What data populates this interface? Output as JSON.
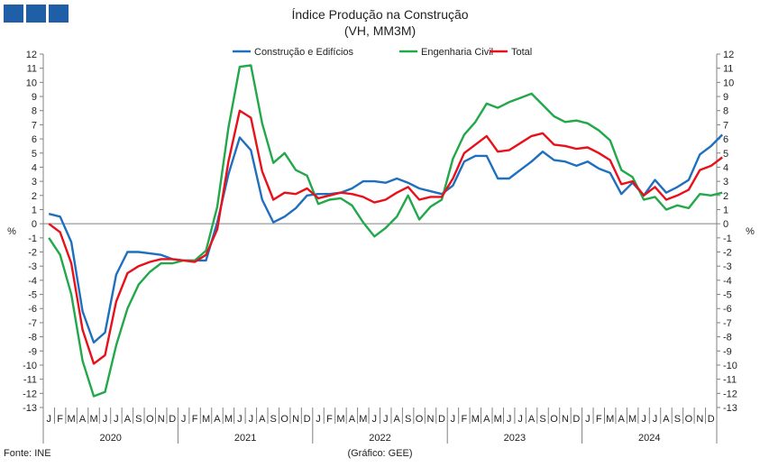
{
  "header": {
    "title": "Índice Produção na Construção",
    "subtitle": "(VH, MM3M)"
  },
  "footer": {
    "source": "Fonte: INE",
    "credit": "(Gráfico: GEE)"
  },
  "logo": {
    "icon": "logo-blocks-icon",
    "color": "#1f5fa8"
  },
  "chart_data": {
    "type": "line",
    "title": "Índice Produção na Construção",
    "subtitle": "(VH, MM3M)",
    "ylabel_left": "%",
    "ylabel_right": "%",
    "ylim": [
      -13,
      12
    ],
    "yticks": [
      -13,
      -12,
      -11,
      -10,
      -9,
      -8,
      -7,
      -6,
      -5,
      -4,
      -3,
      -2,
      -1,
      0,
      1,
      2,
      3,
      4,
      5,
      6,
      7,
      8,
      9,
      10,
      11,
      12
    ],
    "grid": false,
    "legend_position": "top-center",
    "months": [
      "J",
      "F",
      "M",
      "A",
      "M",
      "J",
      "J",
      "A",
      "S",
      "O",
      "N",
      "D"
    ],
    "years": [
      "2020",
      "2021",
      "2022",
      "2023",
      "2024"
    ],
    "series": [
      {
        "name": "Construção e Edifícios",
        "color": "#1f6fbf",
        "values": [
          0.7,
          0.5,
          -1.3,
          -6.2,
          -8.4,
          -7.7,
          -3.6,
          -2.0,
          -2.0,
          -2.1,
          -2.2,
          -2.5,
          -2.6,
          -2.6,
          -2.6,
          0.1,
          3.5,
          6.1,
          5.2,
          1.7,
          0.1,
          0.5,
          1.1,
          2.0,
          2.1,
          2.1,
          2.2,
          2.5,
          3.0,
          3.0,
          2.9,
          3.2,
          2.9,
          2.5,
          2.3,
          2.1,
          2.7,
          4.4,
          4.8,
          4.8,
          3.2,
          3.2,
          3.8,
          4.4,
          5.1,
          4.5,
          4.4,
          4.1,
          4.4,
          3.9,
          3.6,
          2.1,
          2.9,
          2.0,
          3.1,
          2.2,
          2.6,
          3.1,
          4.9,
          5.5,
          6.3
        ]
      },
      {
        "name": "Engenharia Civil",
        "color": "#22a84a",
        "values": [
          -1.0,
          -2.2,
          -5.0,
          -9.7,
          -12.2,
          -11.9,
          -8.6,
          -6.0,
          -4.3,
          -3.4,
          -2.8,
          -2.8,
          -2.6,
          -2.6,
          -1.9,
          1.2,
          6.8,
          11.1,
          11.2,
          7.1,
          4.3,
          5.0,
          3.8,
          3.4,
          1.4,
          1.7,
          1.8,
          1.3,
          0.1,
          -0.9,
          -0.3,
          0.5,
          2.0,
          0.3,
          1.2,
          1.7,
          4.6,
          6.3,
          7.2,
          8.5,
          8.2,
          8.6,
          8.9,
          9.2,
          8.4,
          7.6,
          7.2,
          7.3,
          7.1,
          6.6,
          5.9,
          3.8,
          3.3,
          1.7,
          1.9,
          1.0,
          1.3,
          1.1,
          2.1,
          2.0,
          2.2
        ]
      },
      {
        "name": "Total",
        "color": "#e8101a",
        "values": [
          0.0,
          -0.6,
          -2.8,
          -7.5,
          -9.9,
          -9.3,
          -5.5,
          -3.5,
          -3.0,
          -2.7,
          -2.5,
          -2.5,
          -2.6,
          -2.7,
          -2.2,
          -0.4,
          4.4,
          8.0,
          7.5,
          3.7,
          1.7,
          2.2,
          2.1,
          2.5,
          1.8,
          2.0,
          2.2,
          2.1,
          1.9,
          1.5,
          1.7,
          2.2,
          2.6,
          1.7,
          1.9,
          1.9,
          3.2,
          5.0,
          5.6,
          6.2,
          5.1,
          5.2,
          5.7,
          6.2,
          6.4,
          5.6,
          5.5,
          5.3,
          5.4,
          5.0,
          4.5,
          2.8,
          3.0,
          2.0,
          2.6,
          1.7,
          2.0,
          2.4,
          3.8,
          4.1,
          4.7
        ]
      }
    ]
  }
}
